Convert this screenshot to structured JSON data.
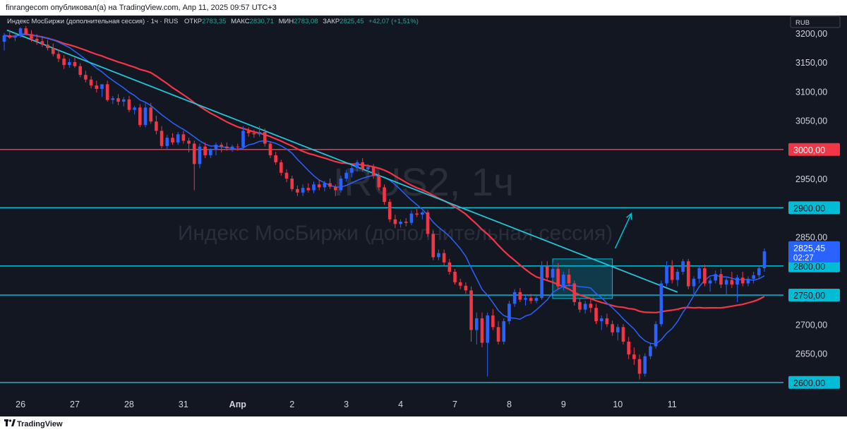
{
  "header": {
    "publisher_line": "finrangecom опубликовал(а) на TradingView.com, Апр 11, 2025 09:57 UTC+3"
  },
  "legend": {
    "symbol": "Индекс МосБиржи (дополнительная сессия) · 1ч · RUS",
    "open_label": "ОТКР",
    "open": "2783,35",
    "high_label": "МАКС",
    "high": "2830,71",
    "low_label": "МИН",
    "low": "2783,08",
    "close_label": "ЗАКР",
    "close": "2825,45",
    "change": "+42,07 (+1,51%)"
  },
  "currency_badge": "RUB",
  "watermark": {
    "ticker": "IRUS2, 1ч",
    "name": "Индекс МосБиржи (дополнительная сессия)"
  },
  "footer": {
    "brand": "TradingView"
  },
  "colors": {
    "background": "#131722",
    "up": "#2962ff",
    "down": "#f23645",
    "level_cyan": "#00bcd4",
    "level_red": "#f23645",
    "ma_fast": "#2962ff",
    "ma_slow": "#f23645",
    "trendline": "#26c6da",
    "axis_text": "#d1d4dc"
  },
  "chart_data": {
    "type": "candlestick",
    "timeframe": "1ч",
    "y_ticks": [
      "3200,00",
      "3150,00",
      "3100,00",
      "3050,00",
      "2950,00",
      "2850,00",
      "2700,00",
      "2650,00"
    ],
    "ylim": [
      2590,
      3230
    ],
    "x_ticks": [
      "26",
      "27",
      "28",
      "31",
      "Апр",
      "2",
      "3",
      "4",
      "7",
      "8",
      "9",
      "10",
      "11"
    ],
    "levels": [
      {
        "value": 3000,
        "label": "3000,00",
        "color": "red"
      },
      {
        "value": 2900,
        "label": "2900,00",
        "color": "cyan"
      },
      {
        "value": 2800,
        "label": "2800,00",
        "color": "cyan"
      },
      {
        "value": 2750,
        "label": "2750,00",
        "color": "cyan"
      },
      {
        "value": 2600,
        "label": "2600,00",
        "color": "cyan"
      }
    ],
    "last_price": {
      "value": 2825.45,
      "label": "2825,45",
      "countdown": "02:27"
    },
    "trendline": {
      "from": {
        "day_index": 0.05,
        "price": 3205
      },
      "to": {
        "day_index": 12.4,
        "price": 2755
      }
    },
    "consolidation_box": {
      "from_day": 10.1,
      "to_day": 11.2,
      "top": 2812,
      "bottom": 2744
    },
    "projection_arrow": {
      "from": {
        "day_index": 11.25,
        "price": 2830
      },
      "to": {
        "day_index": 11.55,
        "price": 2890
      }
    },
    "candles": [
      {
        "t": 0.0,
        "o": 3185,
        "h": 3200,
        "l": 3170,
        "c": 3196
      },
      {
        "t": 0.1,
        "o": 3196,
        "h": 3205,
        "l": 3190,
        "c": 3192
      },
      {
        "t": 0.2,
        "o": 3192,
        "h": 3200,
        "l": 3186,
        "c": 3195
      },
      {
        "t": 0.3,
        "o": 3195,
        "h": 3210,
        "l": 3192,
        "c": 3208
      },
      {
        "t": 0.4,
        "o": 3208,
        "h": 3212,
        "l": 3196,
        "c": 3198
      },
      {
        "t": 0.5,
        "o": 3198,
        "h": 3205,
        "l": 3185,
        "c": 3190
      },
      {
        "t": 0.6,
        "o": 3190,
        "h": 3198,
        "l": 3180,
        "c": 3186
      },
      {
        "t": 0.7,
        "o": 3186,
        "h": 3195,
        "l": 3176,
        "c": 3180
      },
      {
        "t": 0.8,
        "o": 3180,
        "h": 3188,
        "l": 3170,
        "c": 3174
      },
      {
        "t": 0.9,
        "o": 3174,
        "h": 3182,
        "l": 3160,
        "c": 3164
      },
      {
        "t": 1.0,
        "o": 3164,
        "h": 3172,
        "l": 3150,
        "c": 3156
      },
      {
        "t": 1.1,
        "o": 3156,
        "h": 3162,
        "l": 3138,
        "c": 3145
      },
      {
        "t": 1.2,
        "o": 3145,
        "h": 3156,
        "l": 3140,
        "c": 3150
      },
      {
        "t": 1.3,
        "o": 3150,
        "h": 3158,
        "l": 3140,
        "c": 3143
      },
      {
        "t": 1.4,
        "o": 3143,
        "h": 3148,
        "l": 3124,
        "c": 3128
      },
      {
        "t": 1.5,
        "o": 3128,
        "h": 3135,
        "l": 3115,
        "c": 3120
      },
      {
        "t": 1.6,
        "o": 3120,
        "h": 3126,
        "l": 3105,
        "c": 3110
      },
      {
        "t": 1.7,
        "o": 3110,
        "h": 3118,
        "l": 3098,
        "c": 3104
      },
      {
        "t": 1.8,
        "o": 3104,
        "h": 3110,
        "l": 3090,
        "c": 3112
      },
      {
        "t": 1.9,
        "o": 3112,
        "h": 3118,
        "l": 3082,
        "c": 3085
      },
      {
        "t": 2.0,
        "o": 3085,
        "h": 3092,
        "l": 3078,
        "c": 3088
      },
      {
        "t": 2.1,
        "o": 3088,
        "h": 3095,
        "l": 3076,
        "c": 3082
      },
      {
        "t": 2.2,
        "o": 3082,
        "h": 3090,
        "l": 3074,
        "c": 3086
      },
      {
        "t": 2.3,
        "o": 3086,
        "h": 3092,
        "l": 3064,
        "c": 3068
      },
      {
        "t": 2.4,
        "o": 3068,
        "h": 3075,
        "l": 3060,
        "c": 3072
      },
      {
        "t": 2.5,
        "o": 3072,
        "h": 3078,
        "l": 3038,
        "c": 3042
      },
      {
        "t": 2.6,
        "o": 3042,
        "h": 3080,
        "l": 3038,
        "c": 3072
      },
      {
        "t": 2.7,
        "o": 3072,
        "h": 3080,
        "l": 3044,
        "c": 3048
      },
      {
        "t": 2.8,
        "o": 3048,
        "h": 3058,
        "l": 3026,
        "c": 3032
      },
      {
        "t": 2.9,
        "o": 3032,
        "h": 3040,
        "l": 3002,
        "c": 3006
      },
      {
        "t": 3.0,
        "o": 3006,
        "h": 3025,
        "l": 3000,
        "c": 3020
      },
      {
        "t": 3.1,
        "o": 3020,
        "h": 3028,
        "l": 3008,
        "c": 3012
      },
      {
        "t": 3.2,
        "o": 3012,
        "h": 3030,
        "l": 3008,
        "c": 3026
      },
      {
        "t": 3.3,
        "o": 3026,
        "h": 3032,
        "l": 3010,
        "c": 3015
      },
      {
        "t": 3.4,
        "o": 3015,
        "h": 3020,
        "l": 2995,
        "c": 3010
      },
      {
        "t": 3.5,
        "o": 3010,
        "h": 3015,
        "l": 2930,
        "c": 2975
      },
      {
        "t": 3.6,
        "o": 2975,
        "h": 3010,
        "l": 2968,
        "c": 3005
      },
      {
        "t": 3.7,
        "o": 3005,
        "h": 3012,
        "l": 2985,
        "c": 2990
      },
      {
        "t": 3.8,
        "o": 2990,
        "h": 3002,
        "l": 2985,
        "c": 3000
      },
      {
        "t": 3.9,
        "o": 3000,
        "h": 3012,
        "l": 2990,
        "c": 3008
      },
      {
        "t": 4.0,
        "o": 3008,
        "h": 3012,
        "l": 2995,
        "c": 3005
      },
      {
        "t": 4.1,
        "o": 3005,
        "h": 3012,
        "l": 2998,
        "c": 3002
      },
      {
        "t": 4.2,
        "o": 3002,
        "h": 3008,
        "l": 2996,
        "c": 3005
      },
      {
        "t": 4.3,
        "o": 3005,
        "h": 3010,
        "l": 2998,
        "c": 3004
      },
      {
        "t": 4.4,
        "o": 3004,
        "h": 3040,
        "l": 3000,
        "c": 3032
      },
      {
        "t": 4.5,
        "o": 3032,
        "h": 3038,
        "l": 3022,
        "c": 3028
      },
      {
        "t": 4.6,
        "o": 3028,
        "h": 3034,
        "l": 3020,
        "c": 3026
      },
      {
        "t": 4.7,
        "o": 3026,
        "h": 3040,
        "l": 3022,
        "c": 3030
      },
      {
        "t": 4.8,
        "o": 3030,
        "h": 3036,
        "l": 3005,
        "c": 3010
      },
      {
        "t": 4.9,
        "o": 3010,
        "h": 3014,
        "l": 2985,
        "c": 2990
      },
      {
        "t": 5.0,
        "o": 2990,
        "h": 2996,
        "l": 2974,
        "c": 2978
      },
      {
        "t": 5.1,
        "o": 2978,
        "h": 2982,
        "l": 2955,
        "c": 2960
      },
      {
        "t": 5.2,
        "o": 2960,
        "h": 2966,
        "l": 2944,
        "c": 2950
      },
      {
        "t": 5.3,
        "o": 2950,
        "h": 2955,
        "l": 2928,
        "c": 2932
      },
      {
        "t": 5.4,
        "o": 2932,
        "h": 2938,
        "l": 2920,
        "c": 2926
      },
      {
        "t": 5.5,
        "o": 2926,
        "h": 2940,
        "l": 2920,
        "c": 2934
      },
      {
        "t": 5.6,
        "o": 2934,
        "h": 2942,
        "l": 2926,
        "c": 2930
      },
      {
        "t": 5.7,
        "o": 2930,
        "h": 2945,
        "l": 2925,
        "c": 2940
      },
      {
        "t": 5.8,
        "o": 2940,
        "h": 2948,
        "l": 2930,
        "c": 2935
      },
      {
        "t": 5.9,
        "o": 2935,
        "h": 2946,
        "l": 2928,
        "c": 2942
      },
      {
        "t": 6.0,
        "o": 2942,
        "h": 2950,
        "l": 2932,
        "c": 2936
      },
      {
        "t": 6.1,
        "o": 2936,
        "h": 2940,
        "l": 2920,
        "c": 2930
      },
      {
        "t": 6.2,
        "o": 2930,
        "h": 2955,
        "l": 2926,
        "c": 2950
      },
      {
        "t": 6.3,
        "o": 2950,
        "h": 2965,
        "l": 2945,
        "c": 2960
      },
      {
        "t": 6.4,
        "o": 2960,
        "h": 2972,
        "l": 2952,
        "c": 2968
      },
      {
        "t": 6.5,
        "o": 2968,
        "h": 2982,
        "l": 2962,
        "c": 2978
      },
      {
        "t": 6.6,
        "o": 2978,
        "h": 2985,
        "l": 2962,
        "c": 2966
      },
      {
        "t": 6.7,
        "o": 2966,
        "h": 2975,
        "l": 2958,
        "c": 2970
      },
      {
        "t": 6.8,
        "o": 2970,
        "h": 2975,
        "l": 2950,
        "c": 2955
      },
      {
        "t": 6.9,
        "o": 2955,
        "h": 2960,
        "l": 2930,
        "c": 2935
      },
      {
        "t": 7.0,
        "o": 2935,
        "h": 2940,
        "l": 2905,
        "c": 2910
      },
      {
        "t": 7.1,
        "o": 2910,
        "h": 2915,
        "l": 2875,
        "c": 2880
      },
      {
        "t": 7.2,
        "o": 2880,
        "h": 2888,
        "l": 2865,
        "c": 2872
      },
      {
        "t": 7.3,
        "o": 2872,
        "h": 2880,
        "l": 2866,
        "c": 2876
      },
      {
        "t": 7.4,
        "o": 2876,
        "h": 2882,
        "l": 2868,
        "c": 2874
      },
      {
        "t": 7.5,
        "o": 2874,
        "h": 2895,
        "l": 2870,
        "c": 2890
      },
      {
        "t": 7.6,
        "o": 2890,
        "h": 2898,
        "l": 2884,
        "c": 2888
      },
      {
        "t": 7.7,
        "o": 2888,
        "h": 2894,
        "l": 2880,
        "c": 2892
      },
      {
        "t": 7.8,
        "o": 2892,
        "h": 2896,
        "l": 2850,
        "c": 2855
      },
      {
        "t": 7.9,
        "o": 2855,
        "h": 2860,
        "l": 2810,
        "c": 2815
      },
      {
        "t": 8.0,
        "o": 2815,
        "h": 2828,
        "l": 2810,
        "c": 2822
      },
      {
        "t": 8.1,
        "o": 2822,
        "h": 2828,
        "l": 2800,
        "c": 2806
      },
      {
        "t": 8.2,
        "o": 2806,
        "h": 2812,
        "l": 2785,
        "c": 2790
      },
      {
        "t": 8.3,
        "o": 2790,
        "h": 2795,
        "l": 2768,
        "c": 2772
      },
      {
        "t": 8.4,
        "o": 2772,
        "h": 2778,
        "l": 2760,
        "c": 2766
      },
      {
        "t": 8.5,
        "o": 2766,
        "h": 2772,
        "l": 2752,
        "c": 2758
      },
      {
        "t": 8.6,
        "o": 2758,
        "h": 2765,
        "l": 2670,
        "c": 2690
      },
      {
        "t": 8.7,
        "o": 2690,
        "h": 2720,
        "l": 2665,
        "c": 2710
      },
      {
        "t": 8.8,
        "o": 2710,
        "h": 2720,
        "l": 2660,
        "c": 2668
      },
      {
        "t": 8.9,
        "o": 2668,
        "h": 2720,
        "l": 2610,
        "c": 2715
      },
      {
        "t": 9.0,
        "o": 2715,
        "h": 2726,
        "l": 2690,
        "c": 2695
      },
      {
        "t": 9.1,
        "o": 2695,
        "h": 2705,
        "l": 2665,
        "c": 2670
      },
      {
        "t": 9.2,
        "o": 2670,
        "h": 2710,
        "l": 2665,
        "c": 2705
      },
      {
        "t": 9.3,
        "o": 2705,
        "h": 2740,
        "l": 2700,
        "c": 2735
      },
      {
        "t": 9.4,
        "o": 2735,
        "h": 2760,
        "l": 2730,
        "c": 2755
      },
      {
        "t": 9.5,
        "o": 2755,
        "h": 2762,
        "l": 2738,
        "c": 2742
      },
      {
        "t": 9.6,
        "o": 2742,
        "h": 2750,
        "l": 2732,
        "c": 2745
      },
      {
        "t": 9.7,
        "o": 2745,
        "h": 2752,
        "l": 2735,
        "c": 2740
      },
      {
        "t": 9.8,
        "o": 2740,
        "h": 2748,
        "l": 2736,
        "c": 2745
      },
      {
        "t": 9.9,
        "o": 2745,
        "h": 2808,
        "l": 2742,
        "c": 2800
      },
      {
        "t": 10.0,
        "o": 2800,
        "h": 2808,
        "l": 2775,
        "c": 2780
      },
      {
        "t": 10.1,
        "o": 2780,
        "h": 2805,
        "l": 2776,
        "c": 2795
      },
      {
        "t": 10.2,
        "o": 2795,
        "h": 2805,
        "l": 2760,
        "c": 2765
      },
      {
        "t": 10.3,
        "o": 2765,
        "h": 2790,
        "l": 2758,
        "c": 2785
      },
      {
        "t": 10.4,
        "o": 2785,
        "h": 2795,
        "l": 2765,
        "c": 2770
      },
      {
        "t": 10.5,
        "o": 2770,
        "h": 2775,
        "l": 2732,
        "c": 2738
      },
      {
        "t": 10.6,
        "o": 2738,
        "h": 2745,
        "l": 2720,
        "c": 2725
      },
      {
        "t": 10.7,
        "o": 2725,
        "h": 2740,
        "l": 2718,
        "c": 2735
      },
      {
        "t": 10.8,
        "o": 2735,
        "h": 2745,
        "l": 2720,
        "c": 2728
      },
      {
        "t": 10.9,
        "o": 2728,
        "h": 2735,
        "l": 2700,
        "c": 2705
      },
      {
        "t": 11.0,
        "o": 2705,
        "h": 2715,
        "l": 2690,
        "c": 2710
      },
      {
        "t": 11.1,
        "o": 2710,
        "h": 2718,
        "l": 2695,
        "c": 2700
      },
      {
        "t": 11.2,
        "o": 2700,
        "h": 2706,
        "l": 2680,
        "c": 2686
      },
      {
        "t": 11.3,
        "o": 2686,
        "h": 2700,
        "l": 2672,
        "c": 2695
      },
      {
        "t": 11.4,
        "o": 2695,
        "h": 2700,
        "l": 2665,
        "c": 2670
      },
      {
        "t": 11.5,
        "o": 2670,
        "h": 2678,
        "l": 2640,
        "c": 2648
      },
      {
        "t": 11.6,
        "o": 2648,
        "h": 2660,
        "l": 2630,
        "c": 2640
      },
      {
        "t": 11.7,
        "o": 2640,
        "h": 2648,
        "l": 2605,
        "c": 2615
      },
      {
        "t": 11.8,
        "o": 2615,
        "h": 2650,
        "l": 2610,
        "c": 2645
      },
      {
        "t": 11.9,
        "o": 2645,
        "h": 2668,
        "l": 2640,
        "c": 2662
      },
      {
        "t": 12.0,
        "o": 2662,
        "h": 2705,
        "l": 2658,
        "c": 2700
      },
      {
        "t": 12.1,
        "o": 2700,
        "h": 2775,
        "l": 2696,
        "c": 2770
      },
      {
        "t": 12.2,
        "o": 2770,
        "h": 2808,
        "l": 2765,
        "c": 2800
      },
      {
        "t": 12.3,
        "o": 2800,
        "h": 2810,
        "l": 2770,
        "c": 2776
      },
      {
        "t": 12.4,
        "o": 2776,
        "h": 2795,
        "l": 2765,
        "c": 2790
      },
      {
        "t": 12.5,
        "o": 2790,
        "h": 2812,
        "l": 2785,
        "c": 2808
      },
      {
        "t": 12.6,
        "o": 2808,
        "h": 2812,
        "l": 2760,
        "c": 2765
      },
      {
        "t": 12.7,
        "o": 2765,
        "h": 2782,
        "l": 2752,
        "c": 2778
      },
      {
        "t": 12.8,
        "o": 2778,
        "h": 2800,
        "l": 2770,
        "c": 2796
      },
      {
        "t": 12.9,
        "o": 2796,
        "h": 2802,
        "l": 2765,
        "c": 2770
      },
      {
        "t": 13.0,
        "o": 2770,
        "h": 2780,
        "l": 2756,
        "c": 2775
      },
      {
        "t": 13.1,
        "o": 2775,
        "h": 2792,
        "l": 2770,
        "c": 2786
      },
      {
        "t": 13.2,
        "o": 2786,
        "h": 2795,
        "l": 2762,
        "c": 2768
      },
      {
        "t": 13.3,
        "o": 2768,
        "h": 2780,
        "l": 2750,
        "c": 2776
      },
      {
        "t": 13.4,
        "o": 2776,
        "h": 2790,
        "l": 2762,
        "c": 2768
      },
      {
        "t": 13.5,
        "o": 2768,
        "h": 2785,
        "l": 2738,
        "c": 2780
      },
      {
        "t": 13.6,
        "o": 2780,
        "h": 2790,
        "l": 2765,
        "c": 2770
      },
      {
        "t": 13.7,
        "o": 2770,
        "h": 2782,
        "l": 2765,
        "c": 2778
      },
      {
        "t": 13.8,
        "o": 2778,
        "h": 2790,
        "l": 2770,
        "c": 2784
      },
      {
        "t": 13.9,
        "o": 2784,
        "h": 2800,
        "l": 2780,
        "c": 2796
      },
      {
        "t": 14.0,
        "o": 2796,
        "h": 2830,
        "l": 2790,
        "c": 2825
      }
    ]
  }
}
